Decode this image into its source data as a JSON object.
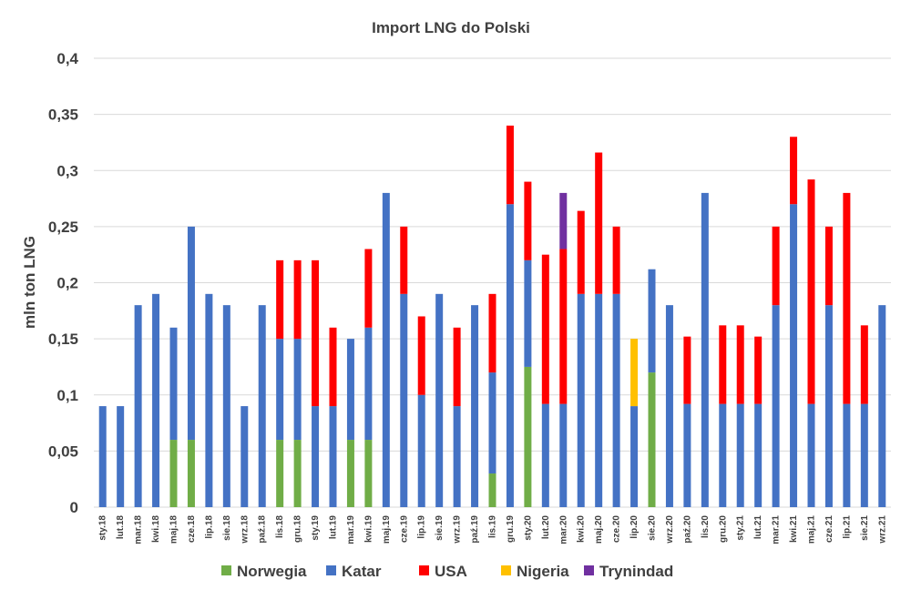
{
  "chart_data": {
    "type": "bar",
    "stacked": true,
    "title": "Import LNG do Polski",
    "ylabel": "mln ton LNG",
    "xlabel": "",
    "ylim": [
      0,
      0.4
    ],
    "yticks": [
      "0",
      "0,05",
      "0,1",
      "0,15",
      "0,2",
      "0,25",
      "0,3",
      "0,35",
      "0,4"
    ],
    "grid": true,
    "legend_position": "bottom",
    "categories": [
      "sty.18",
      "lut.18",
      "mar.18",
      "kwi.18",
      "maj.18",
      "cze.18",
      "lip.18",
      "sie.18",
      "wrz.18",
      "paź.18",
      "lis.18",
      "gru.18",
      "sty.19",
      "lut.19",
      "mar.19",
      "kwi.19",
      "maj.19",
      "cze.19",
      "lip.19",
      "sie.19",
      "wrz.19",
      "paź.19",
      "lis.19",
      "gru.19",
      "sty.20",
      "lut.20",
      "mar.20",
      "kwi.20",
      "maj.20",
      "cze.20",
      "lip.20",
      "sie.20",
      "wrz.20",
      "paź.20",
      "lis.20",
      "gru.20",
      "sty.21",
      "lut.21",
      "mar.21",
      "kwi.21",
      "maj.21",
      "cze.21",
      "lip.21",
      "sie.21",
      "wrz.21"
    ],
    "series": [
      {
        "name": "Norwegia",
        "color": "#70ad47",
        "values": [
          0,
          0,
          0,
          0,
          0.06,
          0.06,
          0,
          0,
          0,
          0,
          0.06,
          0.06,
          0,
          0,
          0.06,
          0.06,
          0,
          0,
          0,
          0,
          0,
          0,
          0.03,
          0,
          0.125,
          0,
          0,
          0,
          0,
          0,
          0,
          0.12,
          0,
          0,
          0,
          0,
          0,
          0,
          0,
          0,
          0,
          0,
          0,
          0,
          0
        ]
      },
      {
        "name": "Katar",
        "color": "#4472c4",
        "values": [
          0.09,
          0.09,
          0.18,
          0.19,
          0.1,
          0.19,
          0.19,
          0.18,
          0.09,
          0.18,
          0.09,
          0.09,
          0.09,
          0.09,
          0.09,
          0.1,
          0.28,
          0.19,
          0.1,
          0.19,
          0.09,
          0.18,
          0.09,
          0.27,
          0.095,
          0.092,
          0.092,
          0.19,
          0.19,
          0.19,
          0.09,
          0.092,
          0.18,
          0.092,
          0.28,
          0.092,
          0.092,
          0.092,
          0.18,
          0.27,
          0.092,
          0.18,
          0.092,
          0.092,
          0.18
        ]
      },
      {
        "name": "USA",
        "color": "#ff0000",
        "values": [
          0,
          0,
          0,
          0,
          0,
          0,
          0,
          0,
          0,
          0,
          0.07,
          0.07,
          0.13,
          0.07,
          0,
          0.07,
          0,
          0.06,
          0.07,
          0,
          0.07,
          0,
          0.07,
          0.07,
          0.07,
          0.133,
          0.138,
          0.074,
          0.126,
          0.06,
          0,
          0,
          0,
          0.06,
          0,
          0.07,
          0.07,
          0.06,
          0.07,
          0.06,
          0.2,
          0.07,
          0.188,
          0.07,
          0
        ]
      },
      {
        "name": "Nigeria",
        "color": "#ffc000",
        "values": [
          0,
          0,
          0,
          0,
          0,
          0,
          0,
          0,
          0,
          0,
          0,
          0,
          0,
          0,
          0,
          0,
          0,
          0,
          0,
          0,
          0,
          0,
          0,
          0,
          0,
          0,
          0,
          0,
          0,
          0,
          0.06,
          0,
          0,
          0,
          0,
          0,
          0,
          0,
          0,
          0,
          0,
          0,
          0,
          0,
          0
        ]
      },
      {
        "name": "Trynindad",
        "color": "#7030a0",
        "values": [
          0,
          0,
          0,
          0,
          0,
          0,
          0,
          0,
          0,
          0,
          0,
          0,
          0,
          0,
          0,
          0,
          0,
          0,
          0,
          0,
          0,
          0,
          0,
          0,
          0,
          0,
          0.05,
          0,
          0,
          0,
          0,
          0,
          0,
          0,
          0,
          0,
          0,
          0,
          0,
          0,
          0,
          0,
          0,
          0,
          0
        ]
      }
    ]
  }
}
